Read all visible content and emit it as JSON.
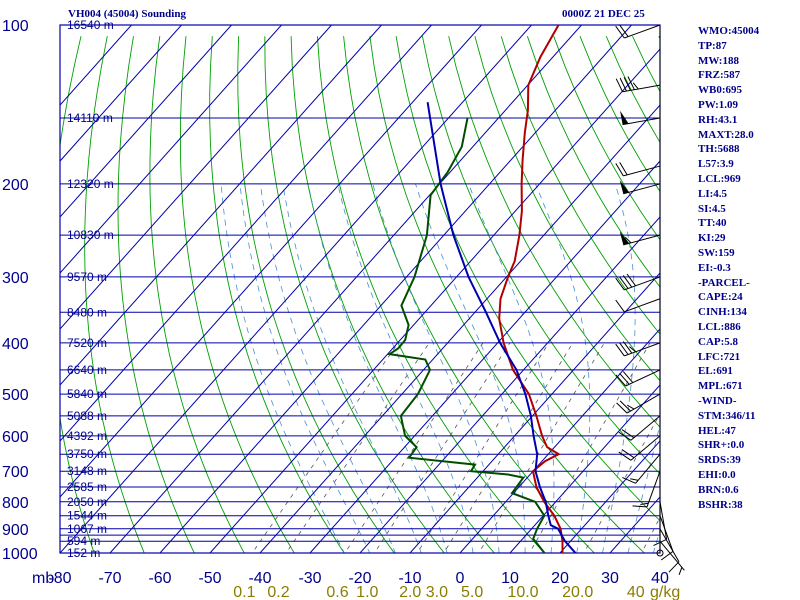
{
  "header": {
    "title_left": "VH004 (45004) Sounding",
    "title_right": "0000Z 21 DEC 25"
  },
  "indices": [
    "WMO:45004",
    "TP:87",
    "MW:188",
    "FRZ:587",
    "WB0:695",
    "PW:1.09",
    "RH:43.1",
    "MAXT:28.0",
    "TH:5688",
    "L57:3.9",
    "LCL:969",
    "LI:4.5",
    "SI:4.5",
    "TT:40",
    "KI:29",
    "SW:159",
    "EI:-0.3",
    "-PARCEL-",
    "CAPE:24",
    "CINH:134",
    "LCL:886",
    "CAP:5.8",
    "LFC:721",
    "EL:691",
    "MPL:671",
    "-WIND-",
    "STM:346/11",
    "HEL:47",
    "SHR+:0.0",
    "SRDS:39",
    "EHI:0.0",
    "BRN:0.6",
    "BSHR:38"
  ],
  "colors": {
    "grid": "#0000aa",
    "dry_adiabat": "#00a000",
    "moist_adiabat": "#4a8fd0",
    "mixing_ratio": "#555555",
    "temperature": "#b00000",
    "dewpoint": "#004d00",
    "parcel": "#0000b0",
    "text": "#00008b",
    "mixing_label": "#8b7d00"
  },
  "chart_data": {
    "type": "line",
    "diagram": "skew-t",
    "y_axis": {
      "scale": "log",
      "ticks": [
        100,
        200,
        300,
        400,
        500,
        600,
        700,
        800,
        900,
        1000
      ],
      "range": [
        100,
        1000
      ]
    },
    "x_axis": {
      "ticks": [
        -80,
        -70,
        -60,
        -50,
        -40,
        -30,
        -20,
        -10,
        0,
        10,
        20,
        30,
        40
      ],
      "unit_label": "mb",
      "range": [
        -80,
        40
      ]
    },
    "isobars": [
      100,
      150,
      200,
      250,
      300,
      350,
      400,
      450,
      500,
      550,
      600,
      650,
      700,
      750,
      800,
      850,
      900,
      925,
      950,
      1000
    ],
    "altitude_labels": [
      {
        "p": 100,
        "label": "16540 m"
      },
      {
        "p": 150,
        "label": "14110 m"
      },
      {
        "p": 200,
        "label": "12320 m"
      },
      {
        "p": 250,
        "label": "10830 m"
      },
      {
        "p": 300,
        "label": "9570 m"
      },
      {
        "p": 350,
        "label": "8480 m"
      },
      {
        "p": 400,
        "label": "7520 m"
      },
      {
        "p": 450,
        "label": "6640 m"
      },
      {
        "p": 500,
        "label": "5840 m"
      },
      {
        "p": 550,
        "label": "5088 m"
      },
      {
        "p": 600,
        "label": "4392 m"
      },
      {
        "p": 650,
        "label": "3750 m"
      },
      {
        "p": 700,
        "label": "3148 m"
      },
      {
        "p": 750,
        "label": "2585 m"
      },
      {
        "p": 800,
        "label": "2050 m"
      },
      {
        "p": 850,
        "label": "1544 m"
      },
      {
        "p": 900,
        "label": "1067 m"
      },
      {
        "p": 950,
        "label": "594 m"
      },
      {
        "p": 1000,
        "label": "152 m"
      }
    ],
    "mixing_ratio_labels": [
      "0.1",
      "0.2",
      "0.6",
      "1.0",
      "2.0",
      "3.0",
      "5.0",
      "10.0",
      "20.0",
      "40"
    ],
    "mixing_ratio_values": [
      0.1,
      0.2,
      0.6,
      1.0,
      2.0,
      3.0,
      5.0,
      10.0,
      20.0,
      40
    ],
    "mixing_ratio_unit": "g/kg",
    "series": [
      {
        "key": "temperature",
        "points": [
          [
            100,
            -74.6
          ],
          [
            115,
            -72.5
          ],
          [
            130,
            -69.9
          ],
          [
            145,
            -65.5
          ],
          [
            160,
            -62.1
          ],
          [
            180,
            -57.7
          ],
          [
            200,
            -53.6
          ],
          [
            225,
            -48.7
          ],
          [
            250,
            -44.9
          ],
          [
            280,
            -41.2
          ],
          [
            300,
            -39.7
          ],
          [
            330,
            -37.3
          ],
          [
            360,
            -34.0
          ],
          [
            400,
            -28.8
          ],
          [
            450,
            -22.1
          ],
          [
            500,
            -14.6
          ],
          [
            550,
            -9.2
          ],
          [
            600,
            -4.5
          ],
          [
            630,
            -1.5
          ],
          [
            650,
            2.1
          ],
          [
            670,
            0.6
          ],
          [
            700,
            0.0
          ],
          [
            750,
            3.5
          ],
          [
            800,
            7.7
          ],
          [
            850,
            12.2
          ],
          [
            900,
            15.8
          ],
          [
            950,
            18.4
          ],
          [
            1000,
            20.5
          ]
        ]
      },
      {
        "key": "dewpoint",
        "points": [
          [
            150,
            -76.2
          ],
          [
            170,
            -72.2
          ],
          [
            190,
            -70.5
          ],
          [
            210,
            -69.8
          ],
          [
            250,
            -63.4
          ],
          [
            300,
            -58.4
          ],
          [
            340,
            -55.9
          ],
          [
            370,
            -51.0
          ],
          [
            395,
            -49.0
          ],
          [
            410,
            -48.9
          ],
          [
            420,
            -49.6
          ],
          [
            430,
            -41.5
          ],
          [
            450,
            -38.7
          ],
          [
            500,
            -36.8
          ],
          [
            550,
            -36.3
          ],
          [
            600,
            -31.9
          ],
          [
            630,
            -27.6
          ],
          [
            660,
            -27.2
          ],
          [
            680,
            -12.8
          ],
          [
            700,
            -12.4
          ],
          [
            710,
            -4.4
          ],
          [
            720,
            -0.8
          ],
          [
            770,
            -0.3
          ],
          [
            800,
            5.9
          ],
          [
            850,
            10.2
          ],
          [
            900,
            11.1
          ],
          [
            940,
            12.1
          ],
          [
            1000,
            16.9
          ]
        ]
      },
      {
        "key": "parcel",
        "points": [
          [
            140,
            -87.0
          ],
          [
            200,
            -69.8
          ],
          [
            250,
            -58.1
          ],
          [
            300,
            -47.6
          ],
          [
            350,
            -37.8
          ],
          [
            400,
            -29.5
          ],
          [
            450,
            -21.4
          ],
          [
            500,
            -15.3
          ],
          [
            550,
            -10.3
          ],
          [
            600,
            -6.2
          ],
          [
            650,
            -2.2
          ],
          [
            700,
            0.5
          ],
          [
            750,
            4.2
          ],
          [
            800,
            8.0
          ],
          [
            850,
            11.0
          ],
          [
            886,
            13.2
          ],
          [
            900,
            15.3
          ],
          [
            950,
            18.9
          ],
          [
            1000,
            23.1
          ]
        ]
      }
    ],
    "wind_barbs": [
      {
        "p": 100,
        "dir": 250,
        "spd": 20
      },
      {
        "p": 130,
        "dir": 260,
        "spd": 45
      },
      {
        "p": 150,
        "dir": 260,
        "spd": 50
      },
      {
        "p": 185,
        "dir": 255,
        "spd": 20
      },
      {
        "p": 200,
        "dir": 255,
        "spd": 50
      },
      {
        "p": 250,
        "dir": 255,
        "spd": 55
      },
      {
        "p": 300,
        "dir": 250,
        "spd": 40
      },
      {
        "p": 330,
        "dir": 250,
        "spd": 10
      },
      {
        "p": 400,
        "dir": 250,
        "spd": 35
      },
      {
        "p": 450,
        "dir": 245,
        "spd": 30
      },
      {
        "p": 500,
        "dir": 240,
        "spd": 25
      },
      {
        "p": 550,
        "dir": 230,
        "spd": 20
      },
      {
        "p": 600,
        "dir": 230,
        "spd": 20
      },
      {
        "p": 650,
        "dir": 220,
        "spd": 15
      },
      {
        "p": 700,
        "dir": 200,
        "spd": 15
      },
      {
        "p": 800,
        "dir": 170,
        "spd": 10
      },
      {
        "p": 850,
        "dir": 160,
        "spd": 10
      },
      {
        "p": 900,
        "dir": 150,
        "spd": 10
      },
      {
        "p": 950,
        "dir": 140,
        "spd": 5
      },
      {
        "p": 1000,
        "dir": 0,
        "spd": 0
      }
    ]
  }
}
